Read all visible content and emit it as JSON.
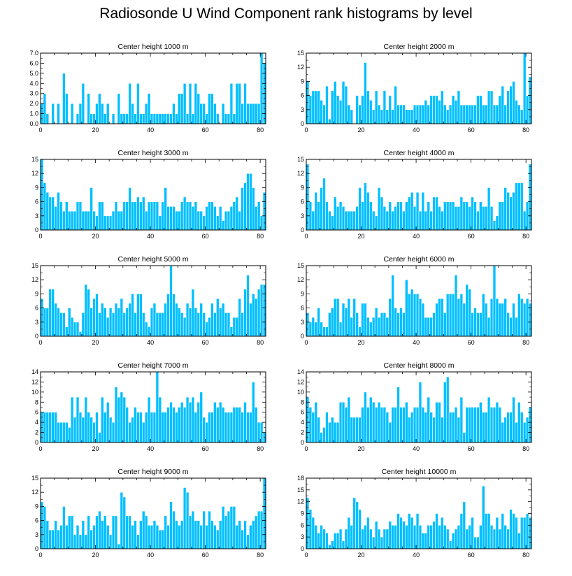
{
  "title": "Radiosonde U Wind Component rank histograms by level",
  "colors": {
    "bar": "#00bfff",
    "bar_edge": "#ffffff",
    "axis": "#000000"
  },
  "chart_data": [
    {
      "type": "bar",
      "title": "Center height 1000 m",
      "xlim": [
        0,
        82
      ],
      "x_ticks": [
        0,
        20,
        40,
        60,
        80
      ],
      "ylim": [
        0,
        7
      ],
      "y_ticks": [
        0,
        1,
        2,
        3,
        4,
        5,
        6,
        7
      ],
      "y_tick_labels": [
        "0.0",
        "1.0",
        "2.0",
        "3.0",
        "4.0",
        "5.0",
        "6.0",
        "7.0"
      ],
      "values": [
        2,
        3,
        1,
        0,
        2,
        0,
        2,
        0,
        5,
        3,
        0,
        2,
        0,
        1,
        2,
        4,
        0,
        3,
        1,
        1,
        2,
        3,
        2,
        1,
        2,
        0,
        1,
        0,
        3,
        1,
        1,
        1,
        4,
        2,
        1,
        4,
        1,
        1,
        2,
        3,
        1,
        1,
        1,
        1,
        1,
        1,
        1,
        1,
        2,
        1,
        3,
        3,
        4,
        1,
        4,
        1,
        4,
        3,
        2,
        2,
        1,
        3,
        3,
        2,
        1,
        0,
        2,
        1,
        1,
        4,
        1,
        4,
        4,
        2,
        4,
        2,
        2,
        2,
        2,
        2,
        7,
        6
      ]
    },
    {
      "type": "bar",
      "title": "Center height 2000 m",
      "xlim": [
        0,
        82
      ],
      "x_ticks": [
        0,
        20,
        40,
        60,
        80
      ],
      "ylim": [
        0,
        15
      ],
      "y_ticks": [
        0,
        3,
        6,
        9,
        12,
        15
      ],
      "y_tick_labels": [
        "0",
        "3",
        "6",
        "9",
        "12",
        "15"
      ],
      "values": [
        9,
        6,
        7,
        7,
        7,
        5,
        4,
        8,
        1,
        7,
        9,
        6,
        5,
        9,
        8,
        4,
        3,
        0,
        6,
        4,
        6,
        13,
        7,
        5,
        3,
        7,
        4,
        3,
        7,
        3,
        6,
        3,
        8,
        4,
        4,
        4,
        3,
        3,
        3,
        4,
        4,
        4,
        4,
        5,
        4,
        6,
        6,
        6,
        5,
        7,
        4,
        3,
        4,
        6,
        5,
        7,
        4,
        4,
        4,
        4,
        4,
        4,
        6,
        6,
        4,
        4,
        7,
        7,
        4,
        4,
        6,
        8,
        4,
        7,
        8,
        9,
        5,
        4,
        3,
        15,
        6,
        10
      ]
    },
    {
      "type": "bar",
      "title": "Center height 3000 m",
      "xlim": [
        0,
        82
      ],
      "x_ticks": [
        0,
        20,
        40,
        60,
        80
      ],
      "ylim": [
        0,
        15
      ],
      "y_ticks": [
        0,
        3,
        6,
        9,
        12,
        15
      ],
      "y_tick_labels": [
        "0",
        "3",
        "6",
        "9",
        "12",
        "15"
      ],
      "values": [
        15,
        10,
        8,
        7,
        7,
        5,
        8,
        6,
        4,
        6,
        4,
        4,
        4,
        6,
        6,
        4,
        4,
        4,
        9,
        4,
        3,
        6,
        6,
        3,
        3,
        3,
        4,
        6,
        4,
        4,
        6,
        6,
        9,
        6,
        6,
        7,
        6,
        7,
        4,
        6,
        6,
        6,
        6,
        3,
        6,
        9,
        5,
        5,
        5,
        4,
        4,
        6,
        7,
        6,
        6,
        5,
        6,
        4,
        4,
        3,
        5,
        6,
        6,
        5,
        3,
        5,
        2,
        4,
        4,
        5,
        6,
        7,
        4,
        9,
        10,
        12,
        12,
        9,
        5,
        6,
        3,
        8
      ]
    },
    {
      "type": "bar",
      "title": "Center height 4000 m",
      "xlim": [
        0,
        82
      ],
      "x_ticks": [
        0,
        20,
        40,
        60,
        80
      ],
      "ylim": [
        0,
        15
      ],
      "y_ticks": [
        0,
        3,
        6,
        9,
        12,
        15
      ],
      "y_tick_labels": [
        "0",
        "3",
        "6",
        "9",
        "12",
        "15"
      ],
      "values": [
        14,
        6,
        4,
        8,
        6,
        9,
        11,
        6,
        4,
        3,
        7,
        5,
        6,
        5,
        4,
        4,
        4,
        4,
        5,
        9,
        6,
        10,
        8,
        6,
        4,
        3,
        9,
        7,
        5,
        4,
        6,
        4,
        5,
        6,
        6,
        4,
        6,
        7,
        8,
        5,
        8,
        4,
        8,
        4,
        6,
        4,
        7,
        7,
        5,
        4,
        6,
        6,
        6,
        6,
        5,
        5,
        7,
        6,
        6,
        5,
        7,
        6,
        4,
        6,
        5,
        5,
        9,
        5,
        2,
        3,
        6,
        6,
        9,
        8,
        7,
        8,
        10,
        10,
        10,
        4,
        6,
        14
      ]
    },
    {
      "type": "bar",
      "title": "Center height 5000 m",
      "xlim": [
        0,
        82
      ],
      "x_ticks": [
        0,
        20,
        40,
        60,
        80
      ],
      "ylim": [
        0,
        15
      ],
      "y_ticks": [
        0,
        3,
        6,
        9,
        12,
        15
      ],
      "y_tick_labels": [
        "0",
        "3",
        "6",
        "9",
        "12",
        "15"
      ],
      "values": [
        8,
        6,
        6,
        10,
        10,
        7,
        6,
        5,
        5,
        2,
        6,
        4,
        3,
        3,
        1,
        5,
        11,
        10,
        6,
        8,
        9,
        5,
        7,
        6,
        4,
        6,
        5,
        7,
        6,
        8,
        5,
        6,
        7,
        9,
        5,
        9,
        9,
        5,
        3,
        2,
        6,
        7,
        5,
        5,
        5,
        7,
        9,
        15,
        9,
        7,
        6,
        5,
        4,
        7,
        6,
        10,
        6,
        5,
        7,
        5,
        3,
        4,
        7,
        5,
        8,
        6,
        7,
        5,
        5,
        2,
        4,
        4,
        8,
        5,
        10,
        13,
        7,
        9,
        8,
        10,
        11,
        11
      ]
    },
    {
      "type": "bar",
      "title": "Center height 6000 m",
      "xlim": [
        0,
        82
      ],
      "x_ticks": [
        0,
        20,
        40,
        60,
        80
      ],
      "ylim": [
        0,
        15
      ],
      "y_ticks": [
        0,
        3,
        6,
        9,
        12,
        15
      ],
      "y_tick_labels": [
        "0",
        "3",
        "6",
        "9",
        "12",
        "15"
      ],
      "values": [
        5,
        3,
        4,
        3,
        6,
        3,
        2,
        2,
        5,
        6,
        8,
        8,
        3,
        7,
        6,
        8,
        4,
        8,
        5,
        2,
        7,
        7,
        4,
        3,
        4,
        6,
        4,
        5,
        5,
        4,
        8,
        13,
        6,
        5,
        6,
        5,
        12,
        9,
        10,
        9,
        9,
        8,
        7,
        4,
        4,
        4,
        5,
        7,
        8,
        8,
        5,
        9,
        9,
        9,
        13,
        8,
        9,
        7,
        11,
        10,
        5,
        6,
        5,
        5,
        9,
        7,
        4,
        8,
        15,
        8,
        7,
        7,
        8,
        5,
        4,
        7,
        4,
        9,
        8,
        7,
        8,
        7
      ]
    },
    {
      "type": "bar",
      "title": "Center height 7000 m",
      "xlim": [
        0,
        82
      ],
      "x_ticks": [
        0,
        20,
        40,
        60,
        80
      ],
      "ylim": [
        0,
        14
      ],
      "y_ticks": [
        0,
        2,
        4,
        6,
        8,
        10,
        12,
        14
      ],
      "y_tick_labels": [
        "0",
        "2",
        "4",
        "6",
        "8",
        "10",
        "12",
        "14"
      ],
      "values": [
        6,
        6,
        6,
        6,
        6,
        6,
        4,
        4,
        4,
        4,
        3,
        9,
        5,
        9,
        6,
        5,
        9,
        6,
        5,
        4,
        6,
        2,
        9,
        6,
        8,
        5,
        4,
        11,
        9,
        10,
        9,
        7,
        4,
        5,
        7,
        6,
        6,
        4,
        6,
        9,
        6,
        6,
        14,
        9,
        6,
        6,
        7,
        8,
        7,
        6,
        7,
        8,
        7,
        9,
        8,
        9,
        6,
        8,
        10,
        5,
        4,
        6,
        6,
        8,
        7,
        8,
        7,
        6,
        6,
        6,
        7,
        7,
        7,
        6,
        8,
        6,
        6,
        12,
        7,
        4,
        4,
        2
      ]
    },
    {
      "type": "bar",
      "title": "Center height 8000 m",
      "xlim": [
        0,
        82
      ],
      "x_ticks": [
        0,
        20,
        40,
        60,
        80
      ],
      "ylim": [
        0,
        14
      ],
      "y_ticks": [
        0,
        2,
        4,
        6,
        8,
        10,
        12,
        14
      ],
      "y_tick_labels": [
        "0",
        "2",
        "4",
        "6",
        "8",
        "10",
        "12",
        "14"
      ],
      "values": [
        9,
        7,
        6,
        8,
        5,
        2,
        3,
        6,
        4,
        5,
        4,
        4,
        8,
        8,
        7,
        9,
        5,
        5,
        5,
        5,
        7,
        10,
        7,
        9,
        8,
        7,
        8,
        7,
        7,
        6,
        4,
        7,
        7,
        11,
        7,
        7,
        8,
        5,
        6,
        7,
        7,
        12,
        7,
        6,
        9,
        6,
        5,
        8,
        8,
        5,
        12,
        13,
        6,
        6,
        7,
        5,
        9,
        2,
        7,
        7,
        7,
        7,
        7,
        8,
        6,
        6,
        9,
        7,
        7,
        8,
        7,
        4,
        5,
        6,
        6,
        9,
        4,
        8,
        6,
        4,
        5,
        7
      ]
    },
    {
      "type": "bar",
      "title": "Center height 9000 m",
      "xlim": [
        0,
        82
      ],
      "x_ticks": [
        0,
        20,
        40,
        60,
        80
      ],
      "ylim": [
        0,
        15
      ],
      "y_ticks": [
        0,
        3,
        6,
        9,
        12,
        15
      ],
      "y_tick_labels": [
        "0",
        "3",
        "6",
        "9",
        "12",
        "15"
      ],
      "values": [
        10,
        9,
        6,
        4,
        4,
        6,
        4,
        5,
        9,
        5,
        7,
        7,
        3,
        5,
        3,
        6,
        3,
        7,
        4,
        5,
        7,
        8,
        6,
        7,
        5,
        3,
        7,
        7,
        1,
        12,
        11,
        7,
        7,
        5,
        6,
        3,
        6,
        8,
        7,
        5,
        5,
        6,
        5,
        4,
        4,
        7,
        5,
        10,
        8,
        6,
        5,
        6,
        13,
        12,
        7,
        8,
        6,
        6,
        5,
        8,
        5,
        8,
        6,
        5,
        4,
        6,
        9,
        7,
        8,
        9,
        9,
        5,
        6,
        4,
        6,
        3,
        5,
        6,
        7,
        8,
        8,
        15
      ]
    },
    {
      "type": "bar",
      "title": "Center height 10000 m",
      "xlim": [
        0,
        82
      ],
      "x_ticks": [
        0,
        20,
        40,
        60,
        80
      ],
      "ylim": [
        0,
        18
      ],
      "y_ticks": [
        0,
        3,
        6,
        9,
        12,
        15,
        18
      ],
      "y_tick_labels": [
        "0",
        "3",
        "6",
        "9",
        "12",
        "15",
        "18"
      ],
      "values": [
        13,
        10,
        8,
        6,
        4,
        6,
        5,
        4,
        1,
        2,
        4,
        4,
        5,
        2,
        5,
        8,
        6,
        13,
        12,
        10,
        5,
        6,
        8,
        5,
        3,
        7,
        5,
        3,
        5,
        5,
        7,
        6,
        6,
        9,
        8,
        7,
        6,
        9,
        8,
        6,
        9,
        6,
        4,
        4,
        6,
        6,
        7,
        9,
        6,
        8,
        6,
        5,
        2,
        4,
        5,
        6,
        9,
        12,
        5,
        6,
        8,
        3,
        3,
        6,
        16,
        9,
        9,
        6,
        5,
        8,
        5,
        9,
        6,
        5,
        10,
        9,
        8,
        4,
        8,
        8,
        9,
        8
      ]
    }
  ]
}
